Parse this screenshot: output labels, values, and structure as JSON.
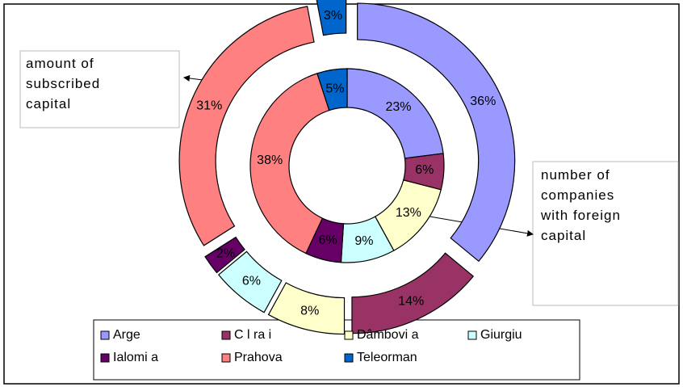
{
  "chart_data": {
    "type": "doughnut",
    "categories": [
      "Arge",
      "C l ra i",
      "Dâmbovi a",
      "Giurgiu",
      "Ialomi a",
      "Prahova",
      "Teleorman"
    ],
    "colors": [
      "#9999ff",
      "#993366",
      "#ffffcc",
      "#ccffff",
      "#660066",
      "#ff8080",
      "#0066cc"
    ],
    "series": [
      {
        "name": "number of companies with foreign capital",
        "values": [
          23,
          6,
          13,
          9,
          6,
          38,
          5
        ],
        "value_labels": [
          "23%",
          "6%",
          "13%",
          "9%",
          "6%",
          "38%",
          "5%"
        ]
      },
      {
        "name": "amount of subscribed capital",
        "values": [
          36,
          14,
          8,
          6,
          2,
          31,
          3
        ],
        "value_labels": [
          "36%",
          "14%",
          "8%",
          "6%",
          "2%",
          "31%",
          "3%"
        ]
      }
    ],
    "legend": "bottom"
  }
}
